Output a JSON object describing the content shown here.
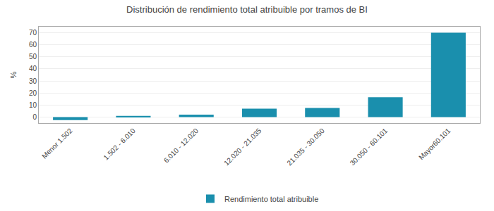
{
  "chart_data": {
    "type": "bar",
    "title": "Distribución de rendimiento total atribuible por tramos de BI",
    "categories": [
      "Menor 1.502",
      "1.502 - 6.010",
      "6.010 - 12.020",
      "12.020 - 21.035",
      "21.035 - 30.050",
      "30.050 - 60.101",
      "Mayor60.101"
    ],
    "series": [
      {
        "name": "Rendimiento total atribuible",
        "color": "#1a8fad",
        "values": [
          -2.5,
          1.0,
          2.0,
          7.0,
          7.5,
          16.5,
          70.0
        ]
      }
    ],
    "ylabel": "%",
    "ylim": [
      -5,
      75
    ],
    "yticks": [
      0,
      10,
      20,
      30,
      40,
      50,
      60,
      70
    ],
    "grid": true,
    "legend": "bottom"
  }
}
